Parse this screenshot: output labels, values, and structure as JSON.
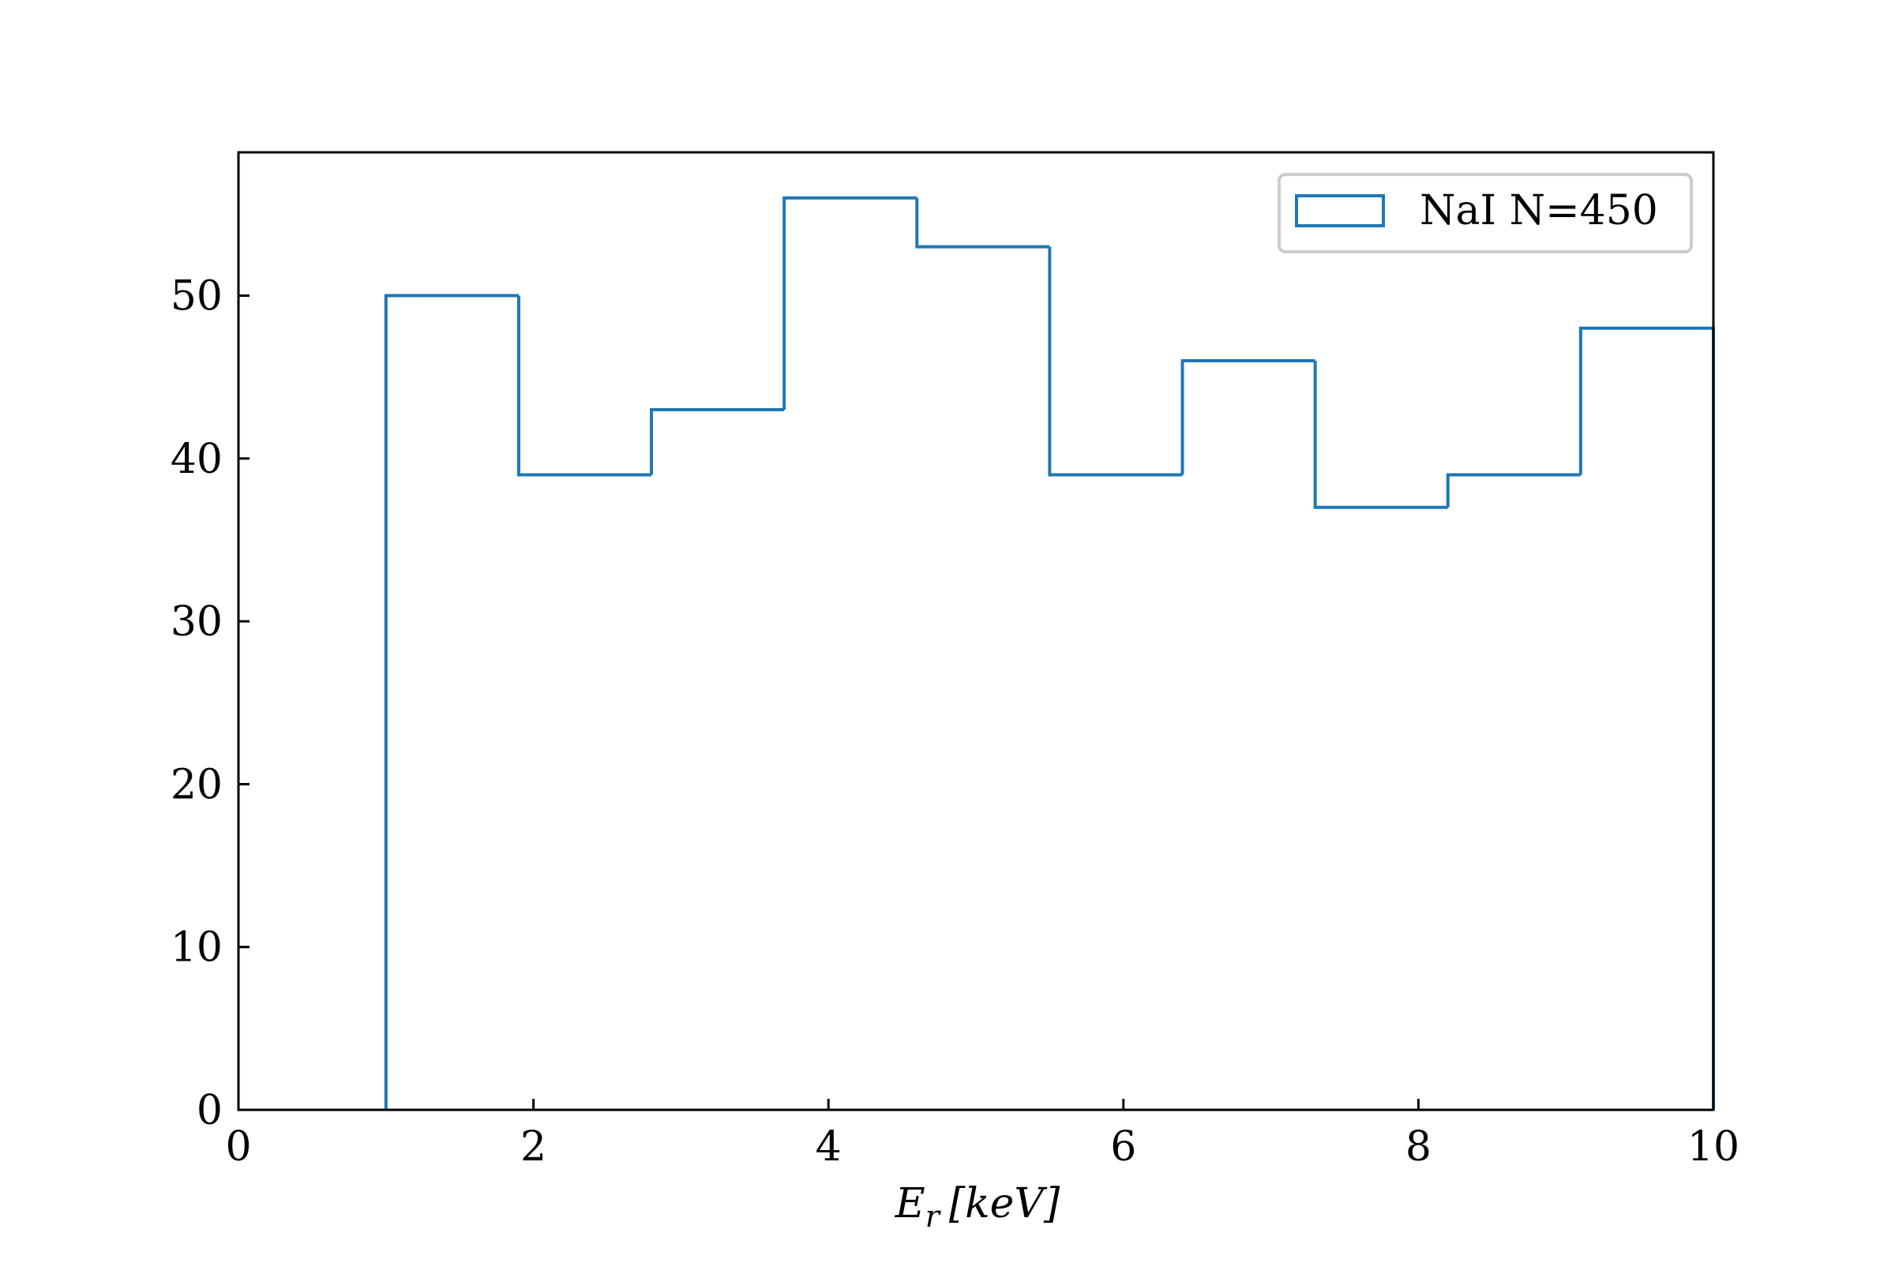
{
  "chart_data": {
    "type": "histogram",
    "title": "",
    "xlabel_main": "E",
    "xlabel_sub": "r",
    "xlabel_unit": "[keV]",
    "ylabel": "",
    "xlim": [
      0,
      10
    ],
    "ylim": [
      0,
      58.8
    ],
    "xticks": [
      0,
      2,
      4,
      6,
      8,
      10
    ],
    "yticks": [
      0,
      10,
      20,
      30,
      40,
      50
    ],
    "grid": false,
    "legend_position": "top-right",
    "bin_edges": [
      1.0,
      1.9,
      2.8,
      3.7,
      4.6,
      5.5,
      6.4,
      7.3,
      8.2,
      9.1,
      10.0
    ],
    "series": [
      {
        "name": "NaI N=450",
        "counts": [
          50,
          39,
          43,
          56,
          53,
          39,
          46,
          37,
          39,
          48
        ],
        "color": "#1f77b4",
        "style": "step"
      }
    ]
  }
}
